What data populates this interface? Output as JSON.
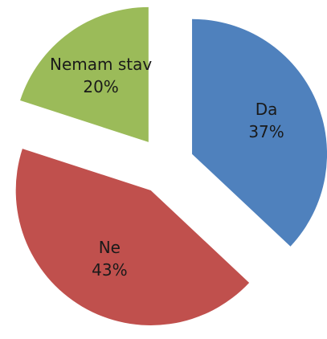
{
  "chart_data": {
    "type": "pie",
    "categories": [
      "Da",
      "Ne",
      "Nemam stav"
    ],
    "values": [
      37,
      43,
      20
    ],
    "value_labels": [
      "37%",
      "43%",
      "20%"
    ],
    "colors": [
      "#4f81bd",
      "#c0504d",
      "#9bbb59"
    ],
    "exploded": true
  }
}
